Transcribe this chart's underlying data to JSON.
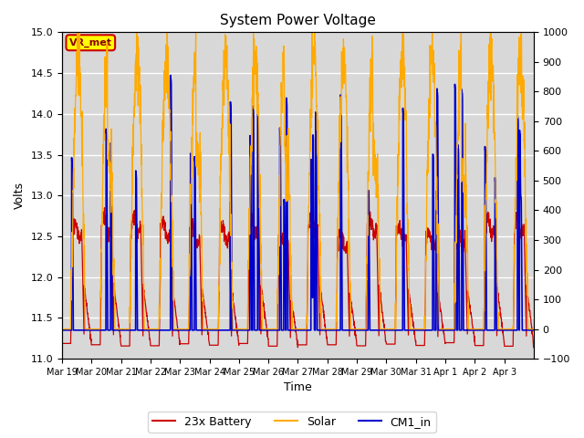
{
  "title": "System Power Voltage",
  "xlabel": "Time",
  "ylabel": "Volts",
  "ylim_left": [
    11.0,
    15.0
  ],
  "ylim_right": [
    -100,
    1000
  ],
  "yticks_left": [
    11.0,
    11.5,
    12.0,
    12.5,
    13.0,
    13.5,
    14.0,
    14.5,
    15.0
  ],
  "yticks_right": [
    -100,
    0,
    100,
    200,
    300,
    400,
    500,
    600,
    700,
    800,
    900,
    1000
  ],
  "date_labels": [
    "Mar 19",
    "Mar 20",
    "Mar 21",
    "Mar 22",
    "Mar 23",
    "Mar 24",
    "Mar 25",
    "Mar 26",
    "Mar 27",
    "Mar 28",
    "Mar 29",
    "Mar 30",
    "Mar 31",
    "Apr 1",
    "Apr 2",
    "Apr 3"
  ],
  "plot_bg_color": "#d8d8d8",
  "line_battery_color": "#cc0000",
  "line_solar_color": "#ffaa00",
  "line_cm1_color": "#0000cc",
  "legend_labels": [
    "23x Battery",
    "Solar",
    "CM1_in"
  ],
  "annotation_text": "VR_met",
  "annotation_bg": "#ffff00",
  "annotation_border": "#cc0000",
  "n_days": 16,
  "pts_per_day": 144
}
